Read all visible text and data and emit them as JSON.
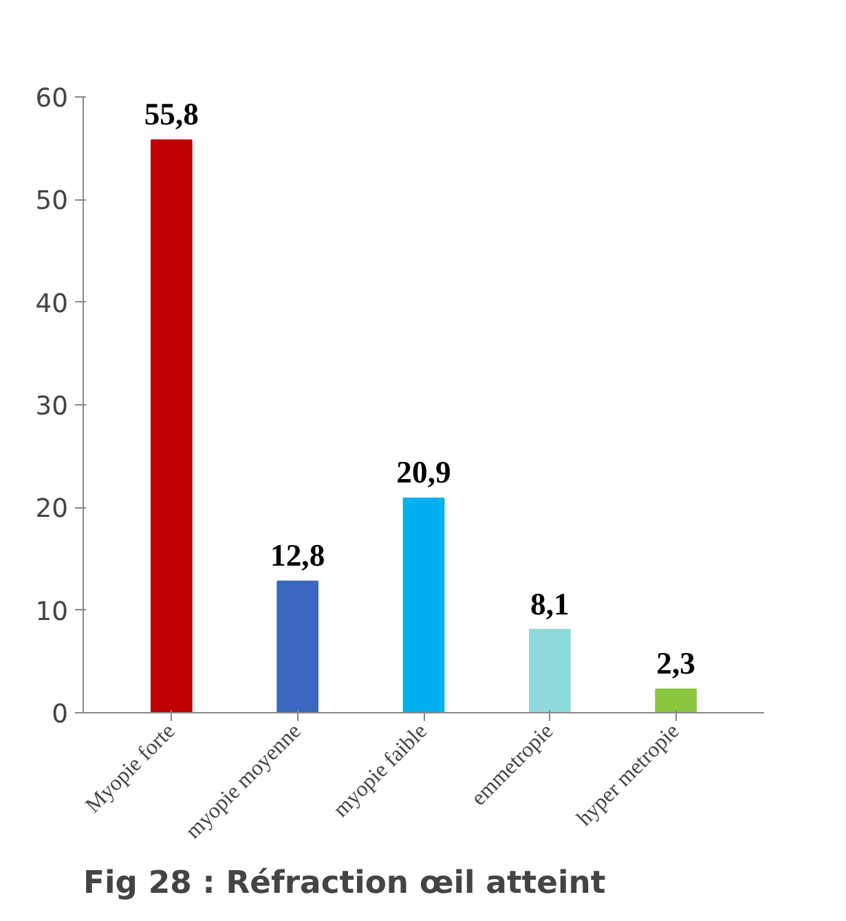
{
  "chart_data": {
    "type": "bar",
    "title": "Fig 28 : Réfraction œil atteint",
    "categories": [
      "Myopie forte",
      "myopie moyenne",
      "myopie faible",
      "emmetropie",
      "hyper metropie"
    ],
    "values": [
      55.8,
      12.8,
      20.9,
      8.1,
      2.3
    ],
    "value_labels": [
      "55,8",
      "12,8",
      "20,9",
      "8,1",
      "2,3"
    ],
    "colors": [
      "#c00000",
      "#3a67bf",
      "#00b0f0",
      "#8fdadc",
      "#8cc63f"
    ],
    "ylim": [
      0,
      60
    ],
    "yticks": [
      0,
      10,
      20,
      30,
      40,
      50,
      60
    ],
    "grid": false
  }
}
